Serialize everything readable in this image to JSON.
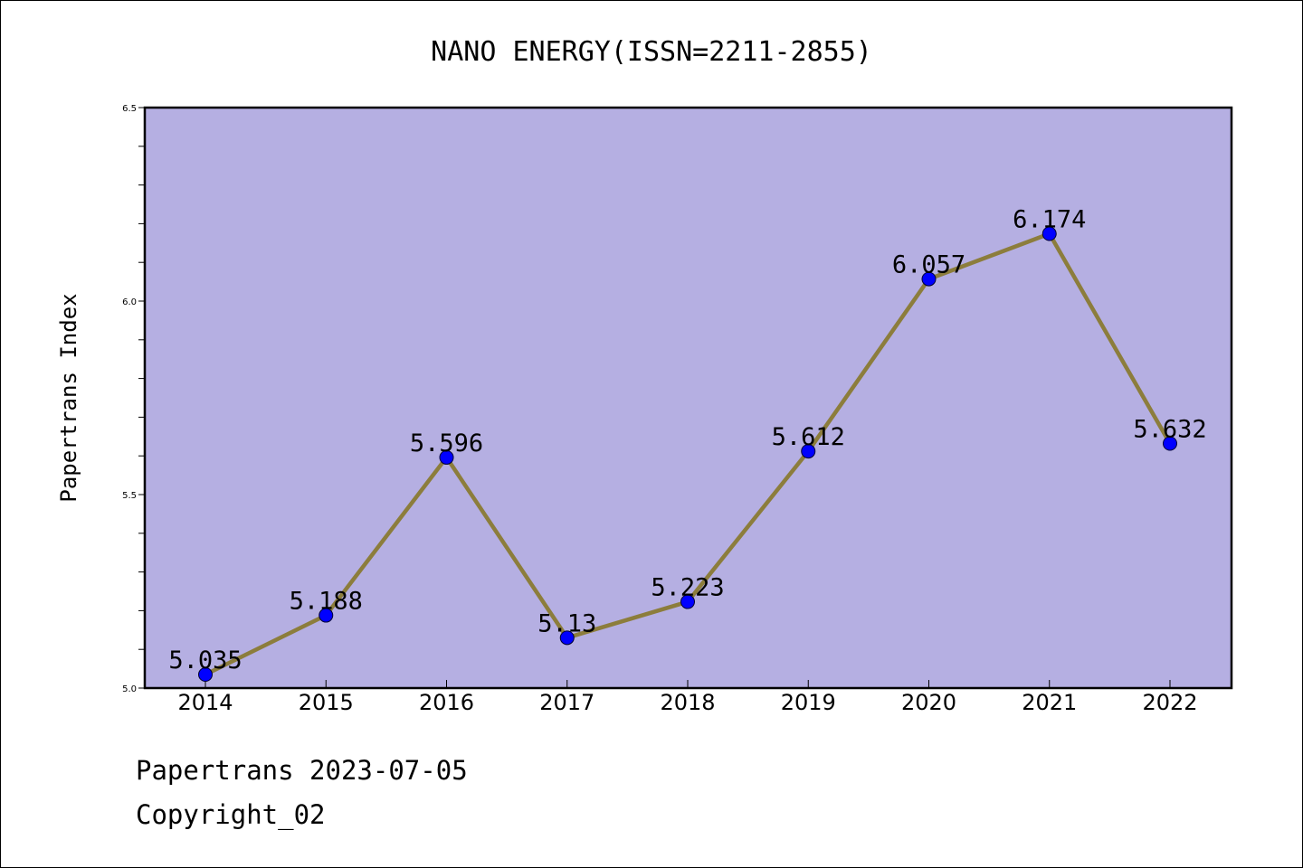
{
  "chart_data": {
    "type": "line",
    "title": "NANO ENERGY(ISSN=2211-2855)",
    "xlabel": "",
    "ylabel": "Papertrans Index",
    "categories": [
      "2014",
      "2015",
      "2016",
      "2017",
      "2018",
      "2019",
      "2020",
      "2021",
      "2022"
    ],
    "values": [
      5.035,
      5.188,
      5.596,
      5.13,
      5.223,
      5.612,
      6.057,
      6.174,
      5.632
    ],
    "data_labels": [
      "5.035",
      "5.188",
      "5.596",
      "5.13",
      "5.223",
      "5.612",
      "6.057",
      "6.174",
      "5.632"
    ],
    "ylim": [
      5.0,
      6.5
    ],
    "yticks": [
      "5.0",
      "5.5",
      "6.0",
      "6.5"
    ],
    "grid": false,
    "colors": {
      "plot_background": "#b5afe2",
      "line": "#8c7d3c",
      "marker": "#0000ff"
    }
  },
  "footer": {
    "source": "Papertrans 2023-07-05",
    "copyright": "Copyright_02"
  }
}
